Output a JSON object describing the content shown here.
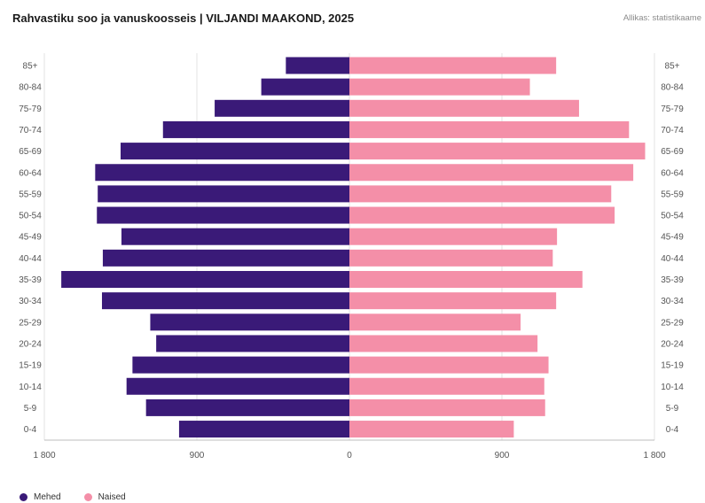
{
  "title": "Rahvastiku soo ja vanuskoosseis | VILJANDI MAAKOND, 2025",
  "source": "Allikas: statistikaame",
  "colors": {
    "men": "#3a1a78",
    "women": "#f48fa8",
    "grid": "#e3e3e3",
    "axis": "#bdbdbd"
  },
  "chart_data": {
    "type": "bar",
    "orientation": "horizontal-pyramid",
    "categories": [
      "85+",
      "80-84",
      "75-79",
      "70-74",
      "65-69",
      "60-64",
      "55-59",
      "50-54",
      "45-49",
      "40-44",
      "35-39",
      "30-34",
      "25-29",
      "20-24",
      "15-19",
      "10-14",
      "5-9",
      "0-4"
    ],
    "series": [
      {
        "name": "Mehed",
        "values": [
          375,
          520,
          795,
          1100,
          1350,
          1500,
          1485,
          1490,
          1345,
          1455,
          1700,
          1460,
          1175,
          1140,
          1280,
          1315,
          1200,
          1005
        ]
      },
      {
        "name": "Naised",
        "values": [
          1220,
          1065,
          1355,
          1650,
          1745,
          1675,
          1545,
          1565,
          1225,
          1200,
          1375,
          1220,
          1010,
          1110,
          1175,
          1150,
          1155,
          970
        ]
      }
    ],
    "xticks": [
      "1 800",
      "900",
      "0",
      "900",
      "1 800"
    ],
    "xtick_values": [
      -1800,
      -900,
      0,
      900,
      1800
    ],
    "xlim": [
      -1800,
      1800
    ],
    "grid": true,
    "legend": "bottom-left"
  }
}
